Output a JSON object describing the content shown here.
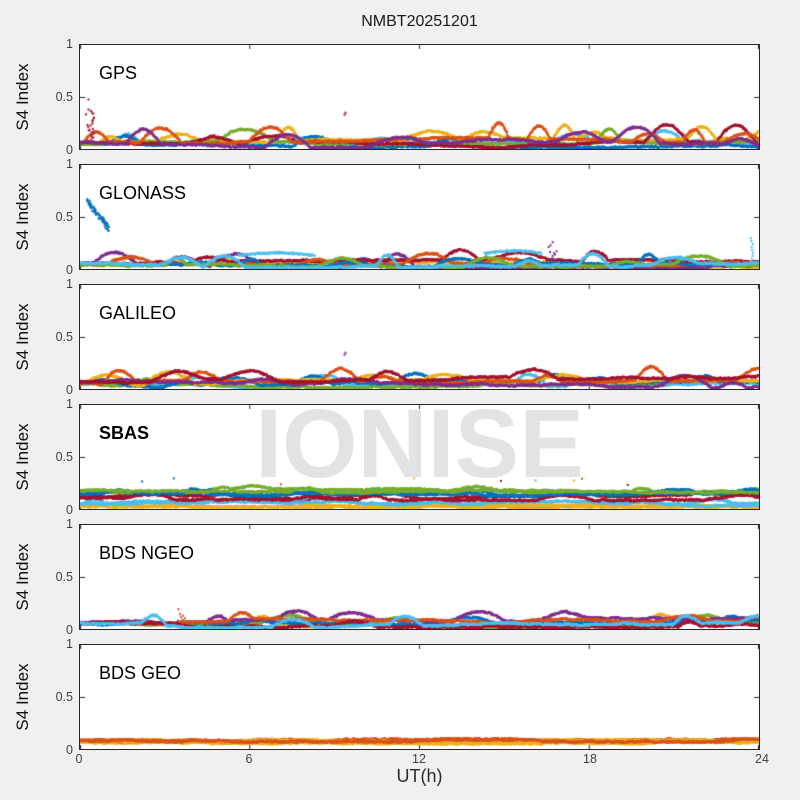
{
  "chart_data": {
    "type": "scatter",
    "title": "NMBT20251201",
    "xlabel": "UT(h)",
    "ylabel": "S4 Index",
    "watermark": "IONISE",
    "x_range": [
      0,
      24
    ],
    "y_range": [
      0,
      1
    ],
    "x_ticks": [
      "0",
      "6",
      "12",
      "18",
      "24"
    ],
    "y_ticks": [
      "1",
      "0.5",
      "0"
    ],
    "grid": false,
    "legend": "none",
    "palette": [
      "#0072BD",
      "#D95319",
      "#EDB120",
      "#7E2F8E",
      "#77AC30",
      "#4DBEEE",
      "#A2142F"
    ],
    "axis_color": "#262626",
    "panels": [
      {
        "label": "GPS",
        "bold": false,
        "seed": 11,
        "passes": 1,
        "description": "dense multicolor noise band S4 0-0.12 with bursts to 0.3; red burst to 0.5 near 0.3h",
        "series": [
          {
            "c": 5,
            "base": 0.05,
            "amp": 0.04,
            "bp": 0.003,
            "bh": 0.1
          },
          {
            "c": 0,
            "base": 0.05,
            "amp": 0.04,
            "bp": 0.003,
            "bh": 0.1
          },
          {
            "c": 2,
            "base": 0.06,
            "amp": 0.05,
            "bp": 0.004,
            "bh": 0.14
          },
          {
            "c": 4,
            "base": 0.05,
            "amp": 0.04,
            "bp": 0.004,
            "bh": 0.18
          },
          {
            "c": 6,
            "base": 0.06,
            "amp": 0.05,
            "bp": 0.004,
            "bh": 0.16
          },
          {
            "c": 1,
            "base": 0.06,
            "amp": 0.05,
            "bp": 0.005,
            "bh": 0.16
          },
          {
            "c": 3,
            "base": 0.06,
            "amp": 0.05,
            "bp": 0.005,
            "bh": 0.14
          }
        ],
        "features": [
          {
            "type": "cluster",
            "x": 0.35,
            "y0": 0.1,
            "y1": 0.5,
            "c": 6
          },
          {
            "type": "dot",
            "x": 9.35,
            "y": 0.33,
            "c": 6
          }
        ]
      },
      {
        "label": "GLONASS",
        "bold": false,
        "seed": 22,
        "passes": 1,
        "description": "band 0-0.1; blue cluster 0.65->0.4 near 0.5h; elevated light-blue arcs 6-8h and 14.5-16h; light-blue spike to 0.3 at 23.7h",
        "series": [
          {
            "c": 2,
            "base": 0.05,
            "amp": 0.04,
            "bp": 0.003,
            "bh": 0.1
          },
          {
            "c": 3,
            "base": 0.05,
            "amp": 0.04,
            "bp": 0.003,
            "bh": 0.12
          },
          {
            "c": 6,
            "base": 0.05,
            "amp": 0.04,
            "bp": 0.003,
            "bh": 0.1
          },
          {
            "c": 1,
            "base": 0.05,
            "amp": 0.04,
            "bp": 0.003,
            "bh": 0.1
          },
          {
            "c": 0,
            "base": 0.04,
            "amp": 0.03,
            "bp": 0.003,
            "bh": 0.08
          },
          {
            "c": 4,
            "base": 0.04,
            "amp": 0.03,
            "bp": 0.003,
            "bh": 0.1
          },
          {
            "c": 5,
            "base": 0.06,
            "amp": 0.05,
            "bp": 0.006,
            "bh": 0.12
          }
        ],
        "features": [
          {
            "type": "trail",
            "x0": 0.25,
            "y0": 0.66,
            "x1": 1.05,
            "y1": 0.38,
            "c": 0
          },
          {
            "type": "varc",
            "x0": 5.6,
            "x1": 8.3,
            "y": 0.13,
            "c": 5
          },
          {
            "type": "varc",
            "x0": 14.3,
            "x1": 16.3,
            "y": 0.15,
            "c": 5
          },
          {
            "type": "vdots",
            "x": 23.75,
            "y0": 0.1,
            "y1": 0.3,
            "c": 5
          },
          {
            "type": "cluster",
            "x": 16.7,
            "y0": 0.08,
            "y1": 0.26,
            "c": 3
          }
        ]
      },
      {
        "label": "GALILEO",
        "bold": false,
        "seed": 33,
        "passes": 1,
        "description": "band 0-0.15 with bumps to 0.2; isolated purple dot 0.33 at 9.3h",
        "series": [
          {
            "c": 5,
            "base": 0.05,
            "amp": 0.04,
            "bp": 0.004,
            "bh": 0.1
          },
          {
            "c": 4,
            "base": 0.05,
            "amp": 0.04,
            "bp": 0.003,
            "bh": 0.08
          },
          {
            "c": 0,
            "base": 0.06,
            "amp": 0.05,
            "bp": 0.004,
            "bh": 0.1
          },
          {
            "c": 2,
            "base": 0.05,
            "amp": 0.04,
            "bp": 0.004,
            "bh": 0.12
          },
          {
            "c": 1,
            "base": 0.06,
            "amp": 0.05,
            "bp": 0.004,
            "bh": 0.12
          },
          {
            "c": 3,
            "base": 0.06,
            "amp": 0.05,
            "bp": 0.004,
            "bh": 0.1
          },
          {
            "c": 6,
            "base": 0.07,
            "amp": 0.05,
            "bp": 0.004,
            "bh": 0.1
          }
        ],
        "features": [
          {
            "type": "dot",
            "x": 9.35,
            "y": 0.33,
            "c": 3
          }
        ]
      },
      {
        "label": "SBAS",
        "bold": true,
        "seed": 44,
        "passes": 2,
        "description": "layered continuous bands: green ~0.17, blue ~0.14, dark red ~0.11, light blue ~0.05, yellow ~0.02; sparse dots ~0.25",
        "series": [
          {
            "c": 2,
            "base": 0.025,
            "amp": 0.012,
            "bp": 0,
            "bh": 0
          },
          {
            "c": 5,
            "base": 0.05,
            "amp": 0.025,
            "bp": 0.002,
            "bh": 0.05
          },
          {
            "c": 6,
            "base": 0.11,
            "amp": 0.03,
            "bp": 0.002,
            "bh": 0.05
          },
          {
            "c": 0,
            "base": 0.145,
            "amp": 0.02,
            "bp": 0.002,
            "bh": 0.04
          },
          {
            "c": 4,
            "base": 0.175,
            "amp": 0.02,
            "bp": 0.002,
            "bh": 0.04
          }
        ],
        "features": [
          {
            "type": "sparse",
            "n": 9,
            "y0": 0.22,
            "y1": 0.3,
            "cs": [
              0,
              1,
              6,
              2,
              5
            ]
          }
        ]
      },
      {
        "label": "BDS NGEO",
        "bold": false,
        "seed": 55,
        "passes": 1,
        "description": "band 0-0.12 all colors; small orange spike to 0.2 near 3.6h",
        "series": [
          {
            "c": 2,
            "base": 0.05,
            "amp": 0.04,
            "bp": 0.003,
            "bh": 0.08
          },
          {
            "c": 4,
            "base": 0.05,
            "amp": 0.04,
            "bp": 0.003,
            "bh": 0.08
          },
          {
            "c": 0,
            "base": 0.05,
            "amp": 0.04,
            "bp": 0.003,
            "bh": 0.08
          },
          {
            "c": 3,
            "base": 0.06,
            "amp": 0.05,
            "bp": 0.003,
            "bh": 0.1
          },
          {
            "c": 1,
            "base": 0.06,
            "amp": 0.05,
            "bp": 0.003,
            "bh": 0.1
          },
          {
            "c": 6,
            "base": 0.06,
            "amp": 0.05,
            "bp": 0.003,
            "bh": 0.08
          },
          {
            "c": 5,
            "base": 0.06,
            "amp": 0.05,
            "bp": 0.003,
            "bh": 0.08
          }
        ],
        "features": [
          {
            "type": "cluster",
            "x": 3.6,
            "y0": 0.08,
            "y1": 0.2,
            "c": 1
          }
        ]
      },
      {
        "label": "BDS GEO",
        "bold": false,
        "seed": 66,
        "passes": 3,
        "description": "flat dense orange band over yellow at ~0.08",
        "series": [
          {
            "c": 2,
            "base": 0.07,
            "amp": 0.02,
            "bp": 0,
            "bh": 0
          },
          {
            "c": 1,
            "base": 0.082,
            "amp": 0.016,
            "bp": 0,
            "bh": 0
          }
        ],
        "features": []
      }
    ]
  }
}
